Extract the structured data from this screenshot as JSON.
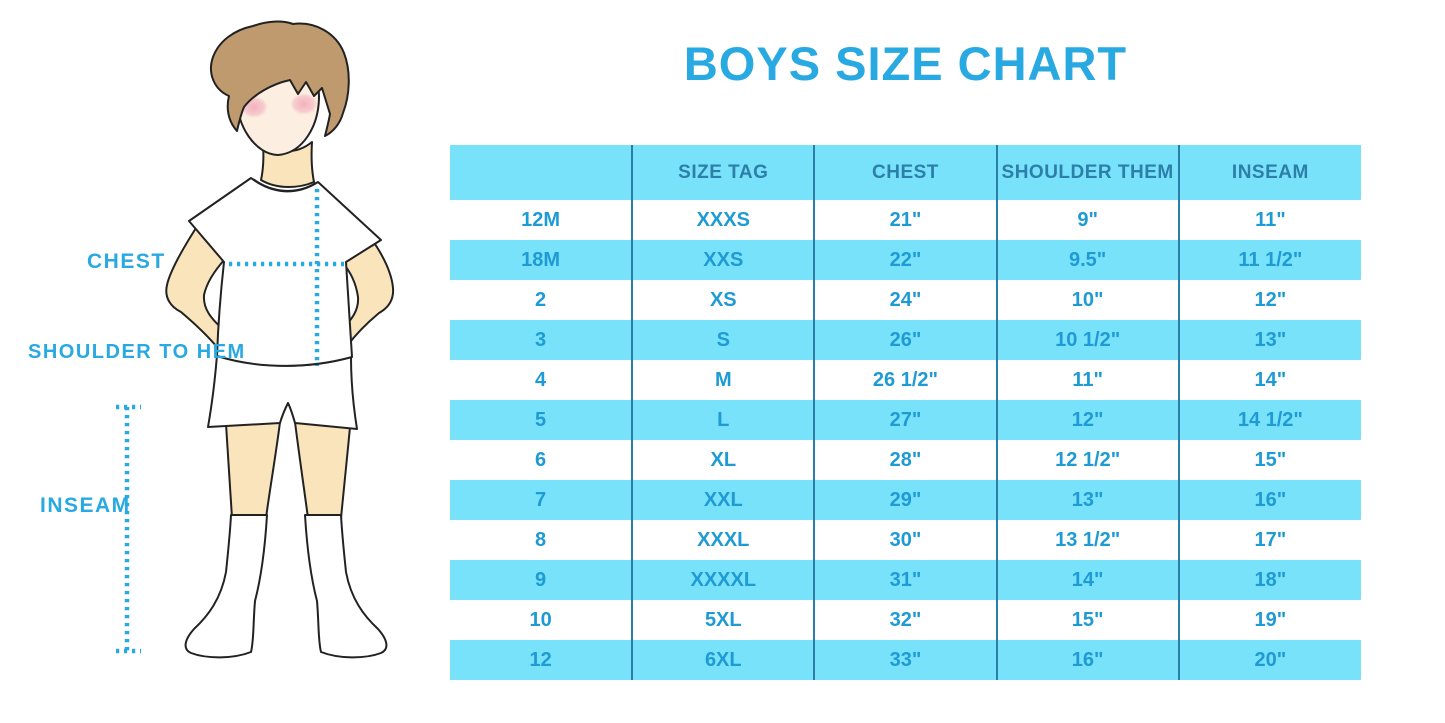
{
  "title": "BOYS SIZE CHART",
  "colors": {
    "accent": "#29A9E1",
    "cell_text": "#1E9AD4",
    "header_text": "#2C7FA9",
    "divider": "#2A7FA8",
    "row_cyan": "#79E2FB",
    "skin": "#FAE4BC",
    "face": "#FCEFE2",
    "hair": "#BE9A6E",
    "cheek": "#F2AEBD",
    "outline": "#222222"
  },
  "figure": {
    "labels": {
      "chest": "CHEST",
      "shoulder_to_hem": "SHOULDER TO HEM",
      "inseam": "INSEAM"
    }
  },
  "chart_data": {
    "type": "table",
    "title": "BOYS SIZE CHART",
    "columns": [
      "",
      "SIZE TAG",
      "CHEST",
      "SHOULDER THEM",
      "INSEAM"
    ],
    "rows": [
      [
        "12M",
        "XXXS",
        "21\"",
        "9\"",
        "11\""
      ],
      [
        "18M",
        "XXS",
        "22\"",
        "9.5\"",
        "11 1/2\""
      ],
      [
        "2",
        "XS",
        "24\"",
        "10\"",
        "12\""
      ],
      [
        "3",
        "S",
        "26\"",
        "10 1/2\"",
        "13\""
      ],
      [
        "4",
        "M",
        "26 1/2\"",
        "11\"",
        "14\""
      ],
      [
        "5",
        "L",
        "27\"",
        "12\"",
        "14 1/2\""
      ],
      [
        "6",
        "XL",
        "28\"",
        "12 1/2\"",
        "15\""
      ],
      [
        "7",
        "XXL",
        "29\"",
        "13\"",
        "16\""
      ],
      [
        "8",
        "XXXL",
        "30\"",
        "13 1/2\"",
        "17\""
      ],
      [
        "9",
        "XXXXL",
        "31\"",
        "14\"",
        "18\""
      ],
      [
        "10",
        "5XL",
        "32\"",
        "15\"",
        "19\""
      ],
      [
        "12",
        "6XL",
        "33\"",
        "16\"",
        "20\""
      ]
    ],
    "layout": {
      "grid": "vertical dividers only",
      "row_striping": "white / light-cyan alternating, header cyan"
    }
  }
}
